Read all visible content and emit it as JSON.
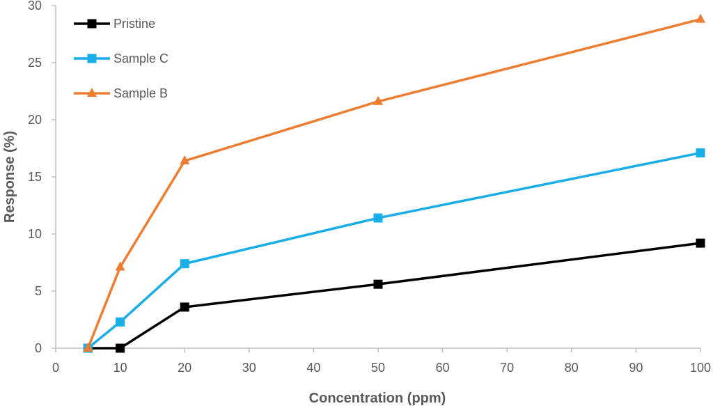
{
  "chart_data": {
    "type": "line",
    "title": "",
    "xlabel": "Concentration (ppm)",
    "ylabel": "Response (%)",
    "xlim": [
      0,
      100
    ],
    "ylim": [
      0,
      30
    ],
    "xticks": [
      0,
      10,
      20,
      30,
      40,
      50,
      60,
      70,
      80,
      90,
      100
    ],
    "yticks": [
      0,
      5,
      10,
      15,
      20,
      25,
      30
    ],
    "grid": false,
    "legend_position": "top-left",
    "x": [
      5,
      10,
      20,
      50,
      100
    ],
    "series": [
      {
        "name": "Pristine",
        "values": [
          0,
          0,
          3.6,
          5.6,
          9.2
        ],
        "color": "#000000",
        "marker": "square"
      },
      {
        "name": "Sample C",
        "values": [
          0,
          2.3,
          7.4,
          11.4,
          17.1
        ],
        "color": "#1AAEE8",
        "marker": "square"
      },
      {
        "name": "Sample B",
        "values": [
          0,
          7.1,
          16.4,
          21.6,
          28.8
        ],
        "color": "#ED7D31",
        "marker": "triangle"
      }
    ],
    "axis_color": "#BFBFBF",
    "text_color": "#595959"
  }
}
